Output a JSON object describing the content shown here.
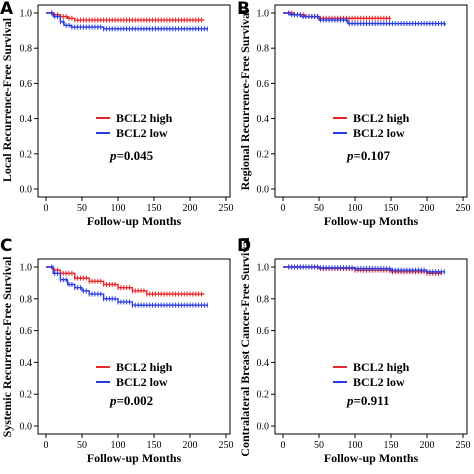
{
  "colors": {
    "high": "#e8262a",
    "low": "#2a3de0",
    "axis": "#000000"
  },
  "chart_data": [
    {
      "panel": "A",
      "type": "line",
      "ylabel": "Local Recurrence-Free Survival",
      "xlabel": "Follow-up Months",
      "xlim": [
        0,
        250
      ],
      "ylim": [
        0,
        1.0
      ],
      "xticks": [
        0,
        50,
        100,
        150,
        200,
        250
      ],
      "yticks": [
        "0.0",
        "0.2",
        "0.4",
        "0.6",
        "0.8",
        "1.0"
      ],
      "legend": {
        "placement": "center-right",
        "items": [
          "BCL2 high",
          "BCL2 low"
        ]
      },
      "pvalue_label": "p",
      "pvalue_text": "=0.045",
      "series": [
        {
          "name": "BCL2 high",
          "x": [
            0,
            10,
            20,
            30,
            40,
            220
          ],
          "y": [
            1.0,
            0.99,
            0.98,
            0.97,
            0.96,
            0.96
          ]
        },
        {
          "name": "BCL2 low",
          "x": [
            0,
            10,
            20,
            25,
            35,
            80,
            225
          ],
          "y": [
            1.0,
            0.98,
            0.95,
            0.93,
            0.92,
            0.91,
            0.91
          ]
        }
      ]
    },
    {
      "panel": "B",
      "type": "line",
      "ylabel": "Regional Recurrence-Free Survival",
      "xlabel": "Follow-up Months",
      "xlim": [
        0,
        250
      ],
      "ylim": [
        0,
        1.0
      ],
      "xticks": [
        0,
        50,
        100,
        150,
        200,
        250
      ],
      "yticks": [
        "0.0",
        "0.2",
        "0.4",
        "0.6",
        "0.8",
        "1.0"
      ],
      "legend": {
        "placement": "center-right",
        "items": [
          "BCL2 high",
          "BCL2 low"
        ]
      },
      "pvalue_label": "p",
      "pvalue_text": "=0.107",
      "series": [
        {
          "name": "BCL2 high",
          "x": [
            0,
            15,
            30,
            50,
            150
          ],
          "y": [
            1.0,
            0.99,
            0.98,
            0.97,
            0.97
          ]
        },
        {
          "name": "BCL2 low",
          "x": [
            0,
            10,
            25,
            50,
            90,
            225
          ],
          "y": [
            1.0,
            0.99,
            0.98,
            0.96,
            0.94,
            0.93
          ]
        }
      ]
    },
    {
      "panel": "C",
      "type": "line",
      "ylabel": "Systemic Recurrence-Free Survival",
      "xlabel": "Follow-up Months",
      "xlim": [
        0,
        250
      ],
      "ylim": [
        0,
        1.0
      ],
      "xticks": [
        0,
        50,
        100,
        150,
        200,
        250
      ],
      "yticks": [
        "0.0",
        "0.2",
        "0.4",
        "0.6",
        "0.8",
        "1.0"
      ],
      "legend": {
        "placement": "center-right",
        "items": [
          "BCL2 high",
          "BCL2 low"
        ]
      },
      "pvalue_label": "p",
      "pvalue_text": "=0.002",
      "series": [
        {
          "name": "BCL2 high",
          "x": [
            0,
            10,
            20,
            40,
            60,
            80,
            100,
            120,
            140,
            220
          ],
          "y": [
            1.0,
            0.98,
            0.96,
            0.93,
            0.91,
            0.89,
            0.87,
            0.85,
            0.83,
            0.83
          ]
        },
        {
          "name": "BCL2 low",
          "x": [
            0,
            10,
            20,
            30,
            40,
            50,
            60,
            80,
            100,
            120,
            225
          ],
          "y": [
            1.0,
            0.96,
            0.92,
            0.89,
            0.87,
            0.85,
            0.83,
            0.8,
            0.78,
            0.76,
            0.76
          ]
        }
      ]
    },
    {
      "panel": "D",
      "type": "line",
      "ylabel": "Contralateral Breast Cancer-Free Survival",
      "xlabel": "Follow-up Months",
      "xlim": [
        0,
        250
      ],
      "ylim": [
        0,
        1.0
      ],
      "xticks": [
        0,
        50,
        100,
        150,
        200,
        250
      ],
      "yticks": [
        "0.0",
        "0.2",
        "0.4",
        "0.6",
        "0.8",
        "1.0"
      ],
      "legend": {
        "placement": "center-right",
        "items": [
          "BCL2 high",
          "BCL2 low"
        ]
      },
      "pvalue_label": "p",
      "pvalue_text": "=0.911",
      "series": [
        {
          "name": "BCL2 high",
          "x": [
            0,
            50,
            100,
            150,
            200,
            220
          ],
          "y": [
            1.0,
            0.99,
            0.98,
            0.97,
            0.96,
            0.95
          ]
        },
        {
          "name": "BCL2 low",
          "x": [
            0,
            50,
            100,
            150,
            200,
            225
          ],
          "y": [
            1.0,
            0.995,
            0.99,
            0.98,
            0.97,
            0.97
          ]
        }
      ]
    }
  ]
}
